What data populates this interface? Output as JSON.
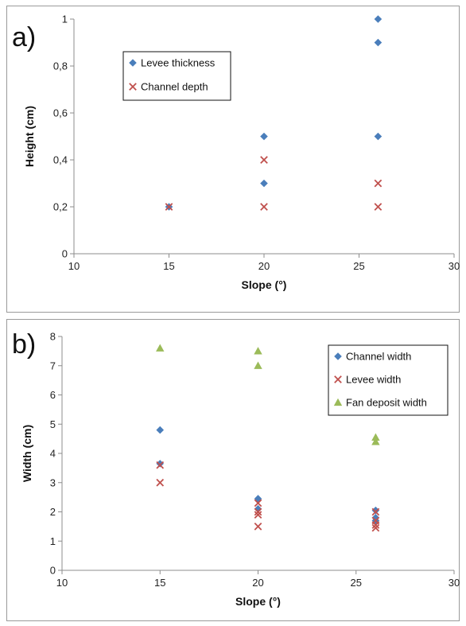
{
  "chart_data": [
    {
      "type": "scatter",
      "panel_label": "a)",
      "xlabel": "Slope (°)",
      "ylabel": "Height (cm)",
      "xlim": [
        10,
        30
      ],
      "ylim": [
        0,
        1
      ],
      "x_ticks": [
        "10",
        "15",
        "20",
        "25",
        "30"
      ],
      "y_ticks": [
        "0",
        "0,2",
        "0,4",
        "0,6",
        "0,8",
        "1"
      ],
      "grid": false,
      "legend_position": "upper-left",
      "series": [
        {
          "name": "Levee thickness",
          "marker": "diamond",
          "color": "#4a7ebb",
          "points": [
            [
              15,
              0.2
            ],
            [
              20,
              0.5
            ],
            [
              20,
              0.3
            ],
            [
              26,
              1.0
            ],
            [
              26,
              0.9
            ],
            [
              26,
              0.5
            ]
          ]
        },
        {
          "name": "Channel depth",
          "marker": "x",
          "color": "#c0504d",
          "points": [
            [
              15,
              0.2
            ],
            [
              20,
              0.4
            ],
            [
              20,
              0.2
            ],
            [
              26,
              0.3
            ],
            [
              26,
              0.2
            ]
          ]
        }
      ]
    },
    {
      "type": "scatter",
      "panel_label": "b)",
      "xlabel": "Slope (°)",
      "ylabel": "Width (cm)",
      "xlim": [
        10,
        30
      ],
      "ylim": [
        0,
        8
      ],
      "x_ticks": [
        "10",
        "15",
        "20",
        "25",
        "30"
      ],
      "y_ticks": [
        "0",
        "1",
        "2",
        "3",
        "4",
        "5",
        "6",
        "7",
        "8"
      ],
      "grid": false,
      "legend_position": "upper-right",
      "series": [
        {
          "name": "Channel width",
          "marker": "diamond",
          "color": "#4a7ebb",
          "points": [
            [
              15,
              4.8
            ],
            [
              15,
              3.65
            ],
            [
              20,
              2.45
            ],
            [
              20,
              2.1
            ],
            [
              26,
              2.05
            ],
            [
              26,
              1.8
            ],
            [
              26,
              1.7
            ]
          ]
        },
        {
          "name": "Levee width",
          "marker": "x",
          "color": "#c0504d",
          "points": [
            [
              15,
              3.6
            ],
            [
              15,
              3.0
            ],
            [
              20,
              2.3
            ],
            [
              20,
              2.0
            ],
            [
              20,
              1.9
            ],
            [
              20,
              1.5
            ],
            [
              26,
              2.0
            ],
            [
              26,
              1.7
            ],
            [
              26,
              1.55
            ],
            [
              26,
              1.45
            ]
          ]
        },
        {
          "name": "Fan deposit width",
          "marker": "triangle",
          "color": "#9bbb59",
          "points": [
            [
              15,
              7.6
            ],
            [
              20,
              7.5
            ],
            [
              20,
              7.0
            ],
            [
              26,
              4.55
            ],
            [
              26,
              4.4
            ]
          ]
        }
      ]
    }
  ]
}
